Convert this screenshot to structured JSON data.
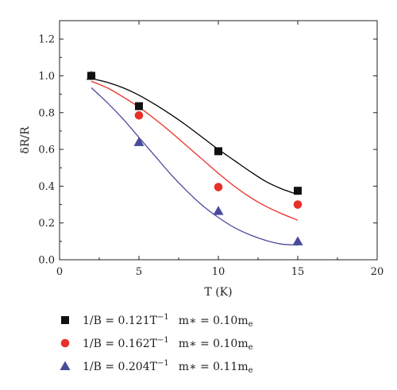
{
  "chart_data": {
    "type": "scatter",
    "xlabel": "T (K)",
    "ylabel": "δR/R",
    "xlim": [
      0,
      20
    ],
    "ylim": [
      0,
      1.3
    ],
    "x_ticks": [
      0,
      5,
      10,
      15,
      20
    ],
    "y_ticks": [
      0.0,
      0.2,
      0.4,
      0.6,
      0.8,
      1.0,
      1.2
    ],
    "x_tick_labels": [
      "0",
      "5",
      "10",
      "15",
      "20"
    ],
    "y_tick_labels": [
      "0.0",
      "0.2",
      "0.4",
      "0.6",
      "0.8",
      "1.0",
      "1.2"
    ],
    "grid": false,
    "legend_placement": "bottom",
    "series": [
      {
        "name": "1/B = 0.121T⁻¹   m* = 0.10mₑ",
        "legend": {
          "lhs": "1/B = 0.121T",
          "sup": "−1",
          "mid": "m∗ = 0.10m",
          "sub": "e"
        },
        "marker": "square",
        "color": "#111111",
        "fit_color": "#000000",
        "x": [
          2,
          5,
          10,
          15
        ],
        "y": [
          1.0,
          0.835,
          0.59,
          0.375
        ],
        "fit_x": [
          2,
          3,
          4,
          5,
          6,
          7,
          8,
          9,
          10,
          11,
          12,
          13,
          14,
          15
        ],
        "fit_y": [
          0.985,
          0.965,
          0.935,
          0.895,
          0.845,
          0.79,
          0.73,
          0.665,
          0.6,
          0.54,
          0.48,
          0.425,
          0.385,
          0.355
        ]
      },
      {
        "name": "1/B = 0.162T⁻¹   m* = 0.10mₑ",
        "legend": {
          "lhs": "1/B = 0.162T",
          "sup": "−1",
          "mid": "m∗ = 0.10m",
          "sub": "e"
        },
        "marker": "circle",
        "color": "#e8302a",
        "fit_color": "#e8302a",
        "x": [
          2,
          5,
          10,
          15
        ],
        "y": [
          1.0,
          0.785,
          0.395,
          0.3
        ],
        "fit_x": [
          2,
          3,
          4,
          5,
          6,
          7,
          8,
          9,
          10,
          11,
          12,
          13,
          14,
          15
        ],
        "fit_y": [
          0.97,
          0.935,
          0.885,
          0.83,
          0.765,
          0.695,
          0.62,
          0.545,
          0.47,
          0.4,
          0.34,
          0.29,
          0.25,
          0.215
        ]
      },
      {
        "name": "1/B = 0.204T⁻¹   m* = 0.11mₑ",
        "legend": {
          "lhs": "1/B = 0.204T",
          "sup": "−1",
          "mid": "m∗ = 0.11m",
          "sub": "e"
        },
        "marker": "triangle",
        "color": "#4a4a9c",
        "fit_color": "#4a4a9c",
        "x": [
          2,
          5,
          10,
          15
        ],
        "y": [
          1.0,
          0.64,
          0.265,
          0.1
        ],
        "fit_x": [
          2,
          3,
          4,
          5,
          6,
          7,
          8,
          9,
          10,
          11,
          12,
          13,
          14,
          15
        ],
        "fit_y": [
          0.935,
          0.855,
          0.765,
          0.665,
          0.565,
          0.465,
          0.375,
          0.295,
          0.23,
          0.175,
          0.135,
          0.105,
          0.085,
          0.08
        ]
      }
    ]
  }
}
